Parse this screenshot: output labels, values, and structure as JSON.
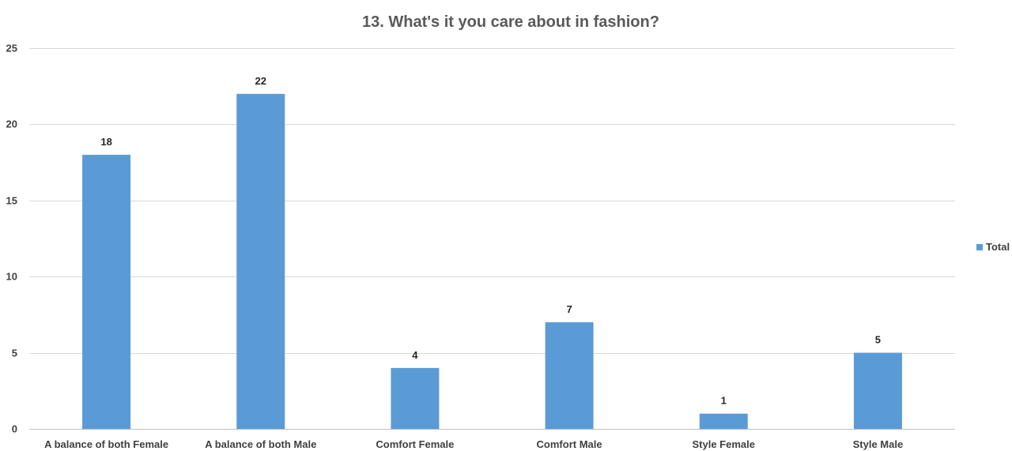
{
  "chart_data": {
    "type": "bar",
    "title": "13. What's it you care about in fashion?",
    "xlabel": "",
    "ylabel": "",
    "categories": [
      "A balance of both Female",
      "A balance of both Male",
      "Comfort Female",
      "Comfort Male",
      "Style Female",
      "Style Male"
    ],
    "series": [
      {
        "name": "Total",
        "values": [
          18,
          22,
          4,
          7,
          1,
          5
        ],
        "color": "#5b9bd5"
      }
    ],
    "ylim": [
      0,
      25
    ],
    "yticks": [
      0,
      5,
      10,
      15,
      20,
      25
    ],
    "grid": true,
    "legend_position": "right",
    "data_labels": true
  }
}
